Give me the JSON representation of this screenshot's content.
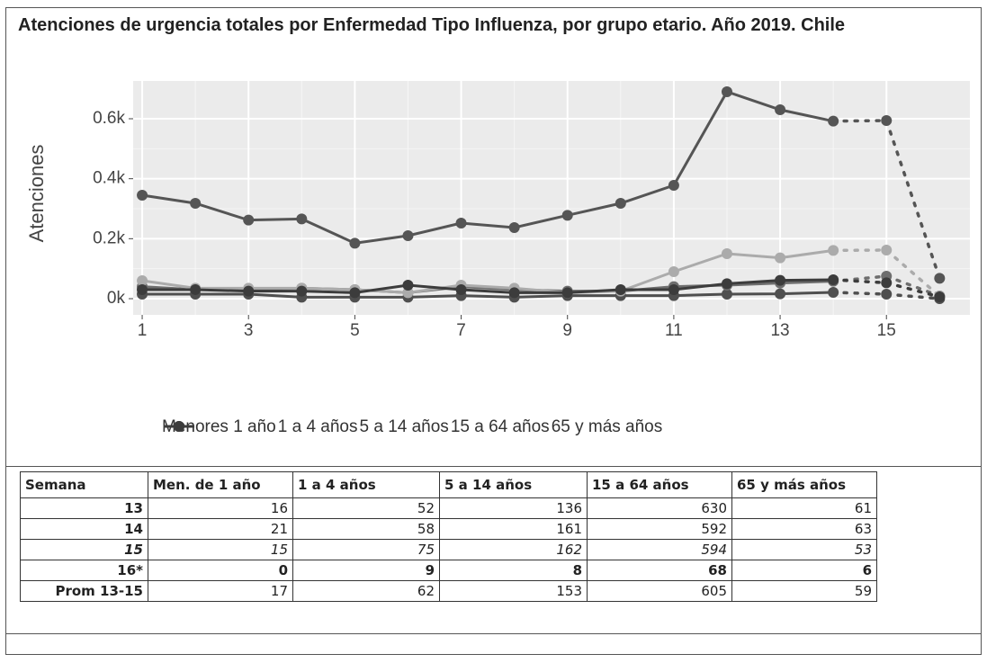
{
  "chart_data": {
    "type": "line",
    "title": "Atenciones de urgencia totales por Enfermedad Tipo Influenza, por grupo etario. Año 2019. Chile",
    "y_label": "Atenciones",
    "x": [
      1,
      2,
      3,
      4,
      5,
      6,
      7,
      8,
      9,
      10,
      11,
      12,
      13,
      14,
      15,
      16
    ],
    "xlim": [
      0.83,
      16.57
    ],
    "xticks": [
      1,
      3,
      5,
      7,
      9,
      11,
      13,
      15
    ],
    "ylim": [
      -54,
      726
    ],
    "yticks": [
      {
        "value": 0,
        "label": "0k"
      },
      {
        "value": 200,
        "label": "0.2k"
      },
      {
        "value": 400,
        "label": "0.4k"
      },
      {
        "value": 600,
        "label": "0.6k"
      }
    ],
    "grid": true,
    "dotted_after": 14,
    "legend": "bottom",
    "series": [
      {
        "name": "Menores 1 año",
        "color": "#4f4f4f",
        "values": [
          15,
          15,
          15,
          5,
          5,
          5,
          10,
          5,
          10,
          10,
          10,
          15,
          16,
          21,
          15,
          0
        ]
      },
      {
        "name": "1 a 4 años",
        "color": "#6e6e6e",
        "values": [
          40,
          30,
          30,
          35,
          30,
          20,
          40,
          30,
          25,
          25,
          40,
          45,
          52,
          58,
          75,
          9
        ]
      },
      {
        "name": "5 a 14 años",
        "color": "#ababab",
        "values": [
          60,
          35,
          35,
          35,
          30,
          20,
          45,
          35,
          20,
          25,
          90,
          150,
          136,
          161,
          162,
          8
        ]
      },
      {
        "name": "15 a 64 años",
        "color": "#555555",
        "values": [
          345,
          318,
          262,
          266,
          185,
          210,
          252,
          237,
          278,
          318,
          378,
          690,
          630,
          592,
          594,
          68
        ]
      },
      {
        "name": "65 y más años",
        "color": "#3c3c3c",
        "values": [
          30,
          30,
          25,
          25,
          20,
          45,
          30,
          20,
          20,
          30,
          30,
          50,
          61,
          63,
          53,
          6
        ]
      }
    ]
  },
  "table": {
    "headers": [
      "Semana",
      "Men. de 1 año",
      "1 a 4 años",
      "5 a 14 años",
      "15 a 64 años",
      "65 y más años"
    ],
    "rows": [
      [
        13,
        16,
        52,
        136,
        630,
        61
      ],
      [
        14,
        21,
        58,
        161,
        592,
        63
      ],
      [
        15,
        15,
        75,
        162,
        594,
        53
      ],
      [
        "16*",
        0,
        9,
        8,
        68,
        6
      ],
      [
        "Prom 13-15",
        17,
        62,
        153,
        605,
        59
      ]
    ]
  }
}
